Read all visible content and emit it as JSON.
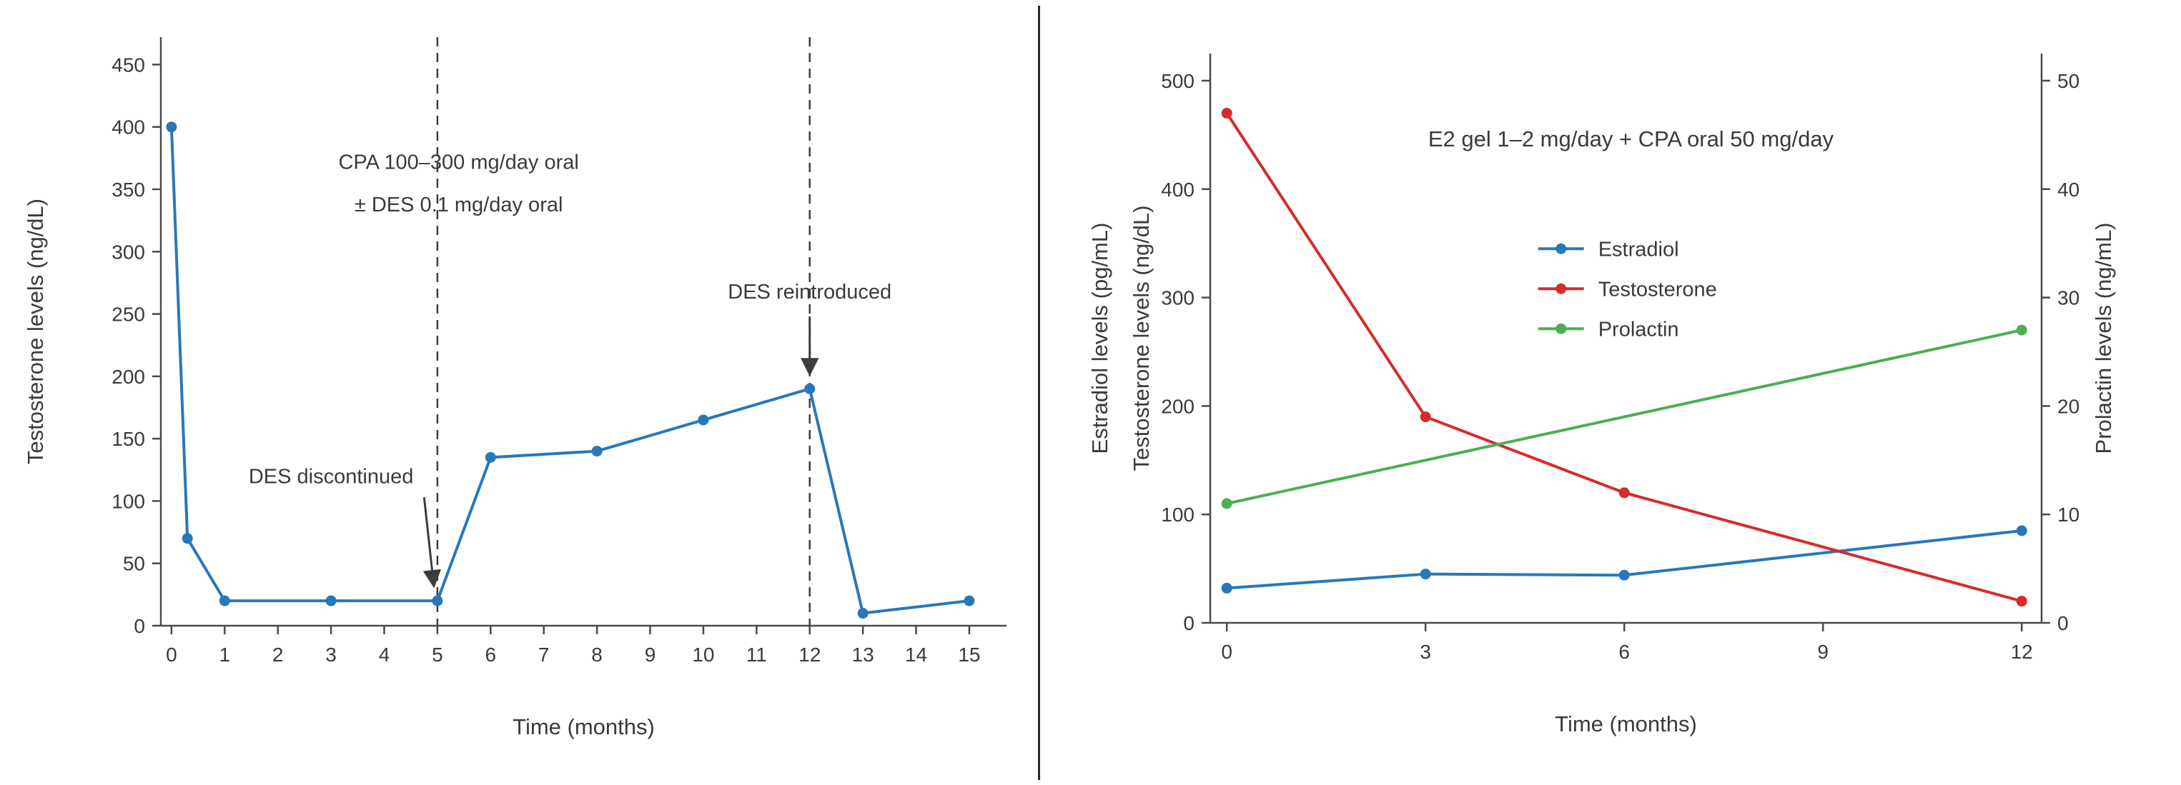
{
  "page": {
    "background": "#ffffff",
    "divider_color": "#262626"
  },
  "chart_data": [
    {
      "type": "line",
      "title": "",
      "xlabel": "Time (months)",
      "ylabel": [
        "Testosterone levels (ng/dL)"
      ],
      "xlim": [
        -0.2,
        15.7
      ],
      "ylim": [
        0,
        472
      ],
      "xticks": [
        0,
        1,
        2,
        3,
        4,
        5,
        6,
        7,
        8,
        9,
        10,
        11,
        12,
        13,
        14,
        15
      ],
      "yticks": [
        0,
        50,
        100,
        150,
        200,
        250,
        300,
        350,
        400,
        450
      ],
      "grid": false,
      "series": [
        {
          "name": "Testosterone",
          "color": "#2878b9",
          "marker": "circle",
          "axis": "left",
          "x": [
            0,
            0.3,
            1,
            3,
            5,
            6,
            8,
            10,
            12,
            13,
            15
          ],
          "y": [
            400,
            70,
            20,
            20,
            20,
            135,
            140,
            165,
            190,
            10,
            20
          ]
        }
      ],
      "vlines": [
        {
          "x": 5,
          "style": "dashed",
          "color": "#3d3d3d"
        },
        {
          "x": 12,
          "style": "dashed",
          "color": "#3d3d3d"
        }
      ],
      "annotations": [
        {
          "text": "CPA 100–300 mg/day oral",
          "x": 5.4,
          "y": 372,
          "align": "center"
        },
        {
          "text": "± DES 0.1 mg/day oral",
          "x": 5.4,
          "y": 338,
          "align": "center"
        },
        {
          "text": "DES discontinued",
          "x": 3.0,
          "y": 120,
          "align": "center",
          "arrow_from": [
            4.75,
            103
          ],
          "arrow_to": [
            4.93,
            33
          ]
        },
        {
          "text": "DES reintroduced",
          "x": 12.0,
          "y": 268,
          "align": "center",
          "arrow_from": [
            12.0,
            248
          ],
          "arrow_to": [
            12.0,
            203
          ]
        }
      ]
    },
    {
      "type": "line",
      "title": "E2 gel 1–2 mg/day + CPA oral 50 mg/day",
      "xlabel": "Time (months)",
      "ylabel": [
        "Estradiol levels (pg/mL)",
        "Testosterone levels (ng/dL)"
      ],
      "ylabel_right": "Prolactin levels (ng/mL)",
      "xlim": [
        -0.25,
        12.3
      ],
      "ylim": [
        0,
        525
      ],
      "ylim_right": [
        0,
        52.5
      ],
      "xticks": [
        0,
        3,
        6,
        9,
        12
      ],
      "yticks": [
        0,
        100,
        200,
        300,
        400,
        500
      ],
      "yticks_right": [
        0,
        10,
        20,
        30,
        40,
        50
      ],
      "grid": false,
      "series": [
        {
          "name": "Estradiol",
          "color": "#2878b9",
          "marker": "circle",
          "axis": "left",
          "x": [
            0,
            3,
            6,
            12
          ],
          "y": [
            32,
            45,
            44,
            85
          ]
        },
        {
          "name": "Testosterone",
          "color": "#d62b2b",
          "marker": "circle",
          "axis": "left",
          "x": [
            0,
            3,
            6,
            12
          ],
          "y": [
            470,
            190,
            120,
            20
          ]
        },
        {
          "name": "Prolactin",
          "color": "#4caf50",
          "marker": "circle",
          "axis": "right",
          "x": [
            0,
            12
          ],
          "y": [
            11,
            27
          ]
        }
      ],
      "legend": {
        "x": 4.7,
        "y": 345,
        "items": [
          "Estradiol",
          "Testosterone",
          "Prolactin"
        ]
      },
      "annotations": [
        {
          "text": "E2 gel 1–2 mg/day + CPA oral 50 mg/day",
          "x": 6.1,
          "y": 446,
          "align": "center"
        }
      ]
    }
  ]
}
